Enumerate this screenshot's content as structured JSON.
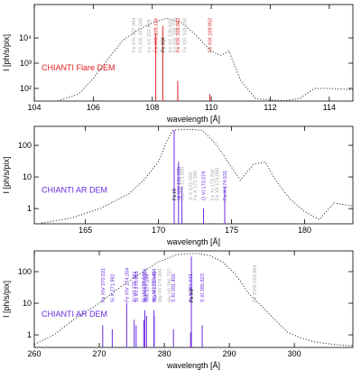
{
  "chart_data": [
    {
      "type": "spectrum",
      "label": "CHIANTI Flare DEM",
      "label_color": "#e02020",
      "xlabel": "wavelength [Å]",
      "ylabel": "I [ph/s/pix]",
      "xlim": [
        104,
        114.8
      ],
      "xticks": [
        104,
        106,
        108,
        110,
        112,
        114
      ],
      "ylim": [
        31.6,
        210000
      ],
      "yticks": [
        {
          "value": 100,
          "label": "10²"
        },
        {
          "value": 1000,
          "label": "10³"
        },
        {
          "value": 10000,
          "label": "10⁴"
        }
      ],
      "log_y": true,
      "line_color": "#e02020",
      "lines": [
        {
          "x": 107.364,
          "value": null,
          "label": "Fe XXI 107.364",
          "color": "#aaaaaa"
        },
        {
          "x": 107.588,
          "value": null,
          "label": "Fe XIX 107.588",
          "color": "#aaaaaa"
        },
        {
          "x": 107.878,
          "value": null,
          "label": "Fe XX 107.878",
          "color": "#aaaaaa"
        },
        {
          "x": 108.118,
          "value": 15000,
          "label": "Fe XXI 108.118",
          "color": "#e02020"
        },
        {
          "x": 108.355,
          "value": 30000,
          "label": "Fe XIX",
          "color": "#000000"
        },
        {
          "x": 108.6,
          "value": null,
          "label": "Fe XX 108.600",
          "color": "#aaaaaa"
        },
        {
          "x": 108.75,
          "value": null,
          "label": "Fe XIX 108.750",
          "color": "#aaaaaa"
        },
        {
          "x": 108.863,
          "value": 200,
          "label": "Fe XIX 108.863",
          "color": "#e02020"
        },
        {
          "x": 109.1,
          "value": null,
          "label": "Fe XXI 109.100",
          "color": "#aaaaaa"
        },
        {
          "x": 109.952,
          "value": 60,
          "label": "Fe XIX 109.952",
          "color": "#e02020"
        }
      ],
      "curve": {
        "x": [
          104.8,
          105.5,
          106,
          106.5,
          107,
          107.5,
          108,
          108.5,
          109,
          109.5,
          110,
          110.3,
          110.6,
          111,
          111.5,
          112,
          112.5,
          113,
          113.5,
          114,
          114.8
        ],
        "values": [
          31.6,
          60,
          250,
          1500,
          8000,
          20000,
          40000,
          60000,
          40000,
          12000,
          3000,
          2000,
          3000,
          200,
          40,
          35,
          33,
          40,
          100,
          100,
          90
        ]
      }
    },
    {
      "type": "spectrum",
      "label": "CHIANTI AR DEM",
      "label_color": "#6a2be0",
      "xlabel": "wavelength [Å]",
      "ylabel": "I [ph/s/pix]",
      "xlim": [
        161.5,
        183.3
      ],
      "xticks": [
        165,
        170,
        175,
        180
      ],
      "ylim": [
        0.33,
        398
      ],
      "yticks": [
        1,
        10,
        100
      ],
      "log_y": true,
      "line_color": "#6a2be0",
      "lines": [
        {
          "x": 171.073,
          "value": 300,
          "label": "Fe IX",
          "color": "#000000"
        },
        {
          "x": 171.37,
          "value": 30,
          "label": "Ni XIV 171.370",
          "color": "#6a2be0"
        },
        {
          "x": 171.6,
          "value": 5,
          "label": "Ca XV 171.600",
          "color": "#aaaaaa"
        },
        {
          "x": 172.17,
          "value": null,
          "label": "O V 172.169",
          "color": "#aaaaaa"
        },
        {
          "x": 172.5,
          "value": null,
          "label": "Fe X 172.500",
          "color": "#aaaaaa"
        },
        {
          "x": 173.079,
          "value": 1,
          "label": "O VI 173.079",
          "color": "#6a2be0"
        },
        {
          "x": 173.7,
          "value": null,
          "label": "Fe XI 173.700",
          "color": "#aaaaaa"
        },
        {
          "x": 174.0,
          "value": null,
          "label": "Fe XII 174.000",
          "color": "#aaaaaa"
        },
        {
          "x": 174.531,
          "value": 5,
          "label": "Fe X 174.531",
          "color": "#6a2be0"
        }
      ],
      "curve": {
        "x": [
          162,
          164,
          166,
          168,
          169,
          170,
          170.6,
          171,
          172,
          173,
          174,
          175,
          175.6,
          176.5,
          177.3,
          178,
          179,
          180,
          181,
          182,
          183.3
        ],
        "values": [
          0.35,
          0.5,
          1,
          3,
          8,
          30,
          150,
          300,
          320,
          300,
          100,
          20,
          8,
          25,
          30,
          8,
          2,
          0.8,
          0.45,
          1.5,
          1.2
        ]
      }
    },
    {
      "type": "spectrum",
      "label": "CHIANTI AR DEM",
      "label_color": "#6a2be0",
      "xlabel": "wavelength [Å]",
      "ylabel": "I [ph/s/pix]",
      "xlim": [
        260,
        309
      ],
      "xticks": [
        260,
        270,
        280,
        290,
        300
      ],
      "ylim": [
        0.4,
        454
      ],
      "yticks": [
        1,
        10,
        100
      ],
      "log_y": true,
      "line_color": "#6a2be0",
      "lines": [
        {
          "x": 270.521,
          "value": 2,
          "label": "Fe XIV 270.521",
          "color": "#6a2be0"
        },
        {
          "x": 271.992,
          "value": 1.5,
          "label": "Si X 271.992",
          "color": "#6a2be0"
        },
        {
          "x": 274.204,
          "value": 10,
          "label": "Fe XIV 274.204",
          "color": "#6a2be0"
        },
        {
          "x": 275.361,
          "value": 3,
          "label": "Si VII 275.361",
          "color": "#6a2be0"
        },
        {
          "x": 275.665,
          "value": 2,
          "label": "Si VII 275.665",
          "color": "#6a2be0"
        },
        {
          "x": 276.839,
          "value": 3,
          "label": "Si VII 276.839",
          "color": "#6a2be0"
        },
        {
          "x": 277.003,
          "value": 6,
          "label": "Mg VII 277.003",
          "color": "#6a2be0"
        },
        {
          "x": 277.264,
          "value": 4,
          "label": "Si X 277.264",
          "color": "#6a2be0"
        },
        {
          "x": 278.404,
          "value": 6,
          "label": "Mg VII 278.404",
          "color": "#6a2be0"
        },
        {
          "x": 278.449,
          "value": 4,
          "label": "Si VII 278.449",
          "color": "#6a2be0"
        },
        {
          "x": 279.3,
          "value": null,
          "label": "Mg VII 279.300",
          "color": "#aaaaaa"
        },
        {
          "x": 280.737,
          "value": null,
          "label": "Mg VII 280.737",
          "color": "#aaaaaa"
        },
        {
          "x": 281.402,
          "value": 1.5,
          "label": "S XI 281.402",
          "color": "#6a2be0"
        },
        {
          "x": 284.042,
          "value": 1.2,
          "label": "Al X 284.042",
          "color": "#6a2be0"
        },
        {
          "x": 284.16,
          "value": 300,
          "label": "Fe XV",
          "color": "#000000"
        },
        {
          "x": 285.823,
          "value": 2,
          "label": "S XI 285.823",
          "color": "#6a2be0"
        },
        {
          "x": 293.884,
          "value": null,
          "label": "Fe XVIII 293.884",
          "color": "#aaaaaa"
        }
      ],
      "curve": {
        "x": [
          260,
          263,
          266,
          270,
          273,
          276,
          279,
          282,
          285,
          287,
          289,
          291,
          293,
          295,
          297,
          299,
          301,
          303,
          306,
          309
        ],
        "values": [
          0.5,
          1,
          3,
          10,
          30,
          80,
          200,
          350,
          380,
          320,
          200,
          80,
          20,
          8,
          3,
          1.2,
          0.8,
          0.6,
          0.5,
          0.45
        ]
      }
    }
  ]
}
